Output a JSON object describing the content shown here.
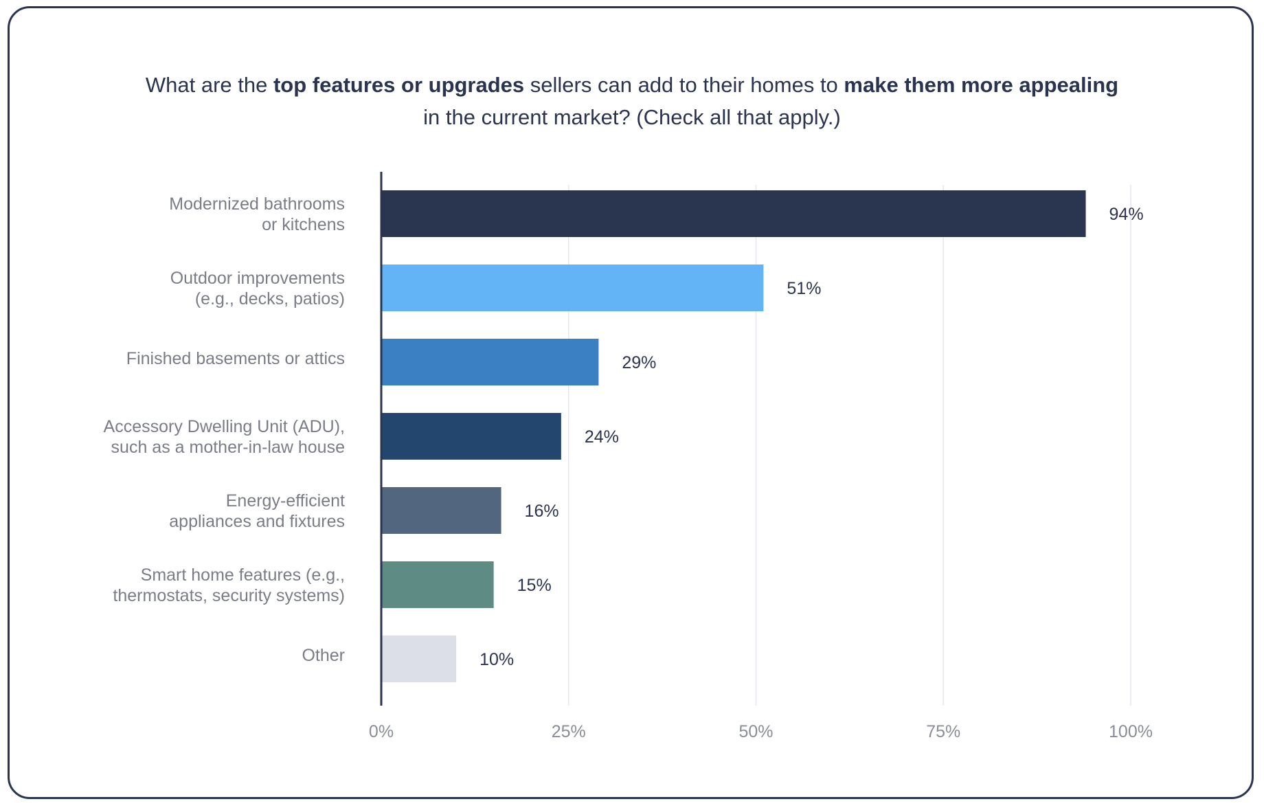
{
  "chart_data": {
    "type": "bar",
    "orientation": "horizontal",
    "title_parts": [
      {
        "text": "What are the ",
        "bold": false
      },
      {
        "text": "top features or upgrades",
        "bold": true
      },
      {
        "text": " sellers can add to their homes to ",
        "bold": false
      },
      {
        "text": "make them more appealing",
        "bold": true
      },
      {
        "text": " in the current market? (Check all that apply.)",
        "bold": false
      }
    ],
    "categories": [
      [
        "Modernized bathrooms",
        "or kitchens"
      ],
      [
        "Outdoor improvements",
        "(e.g., decks, patios)"
      ],
      [
        "Finished basements or attics"
      ],
      [
        "Accessory Dwelling Unit (ADU),",
        "such as a mother-in-law house"
      ],
      [
        "Energy-efficient",
        "appliances and fixtures"
      ],
      [
        "Smart home features (e.g.,",
        "thermostats, security systems)"
      ],
      [
        "Other"
      ]
    ],
    "values": [
      94,
      51,
      29,
      24,
      16,
      15,
      10
    ],
    "value_labels": [
      "94%",
      "51%",
      "29%",
      "24%",
      "16%",
      "15%",
      "10%"
    ],
    "colors": [
      "#2a3550",
      "#63b3f7",
      "#3b80c3",
      "#23466f",
      "#53667f",
      "#5f8b85",
      "#dcdfe8"
    ],
    "xlim": [
      0,
      100
    ],
    "xticks": [
      0,
      25,
      50,
      75,
      100
    ],
    "xtick_labels": [
      "0%",
      "25%",
      "50%",
      "75%",
      "100%"
    ],
    "grid": true,
    "xlabel": "",
    "ylabel": ""
  }
}
